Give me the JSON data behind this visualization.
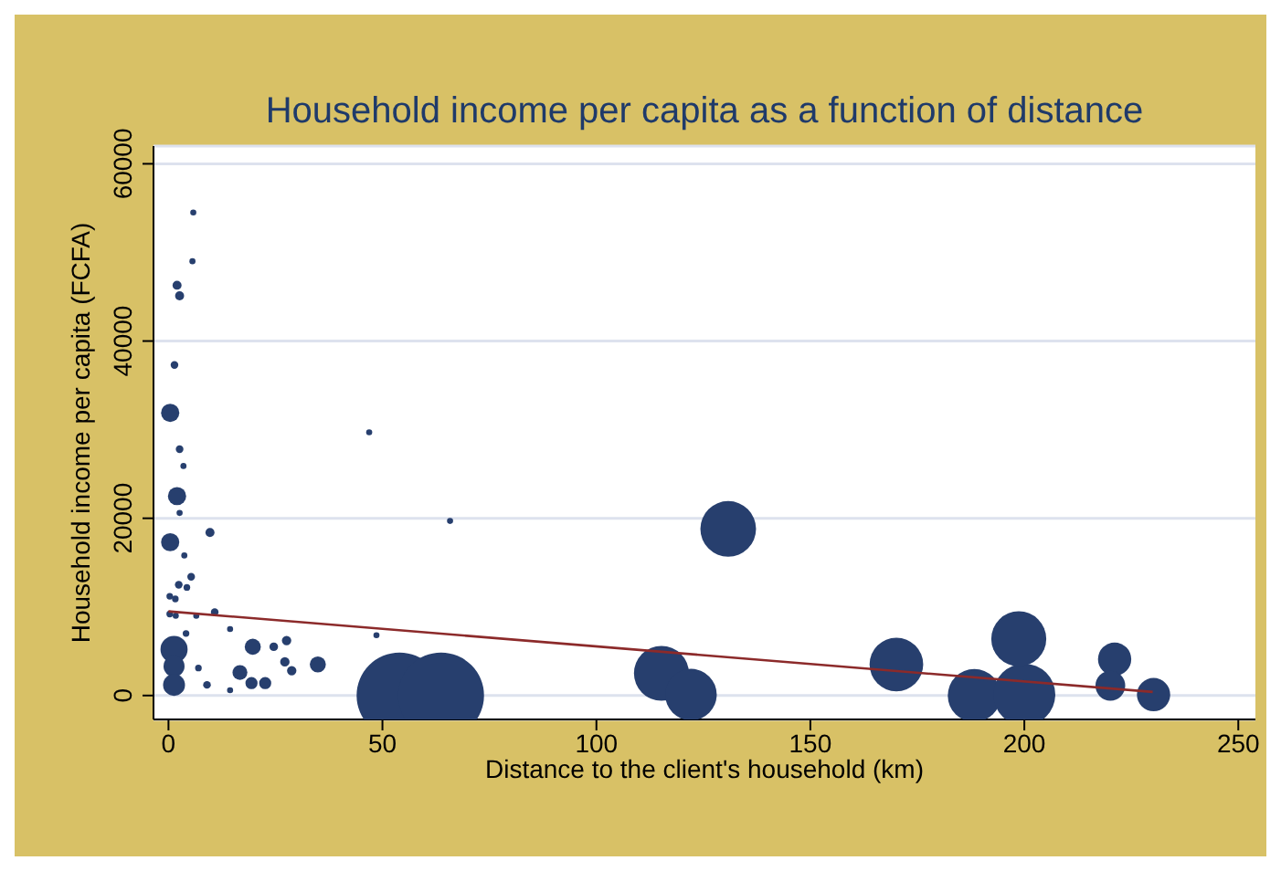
{
  "chart_data": {
    "type": "bubble",
    "title": "Household income per capita as a function of distance",
    "xlabel": "Distance to the client's household (km)",
    "ylabel": "Household income per capita (FCFA)",
    "xlim": [
      -3.5,
      254
    ],
    "xticks": [
      0,
      50,
      100,
      150,
      200,
      250
    ],
    "ylim": [
      -2700,
      62000
    ],
    "yticks": [
      0,
      20000,
      40000,
      60000
    ],
    "grid": "y",
    "series": [
      {
        "color": "#273f6e",
        "x": [
          5.8,
          5.6,
          2.0,
          2.6,
          1.4,
          0.4,
          2.6,
          3.5,
          2.0,
          2.6,
          0.4,
          9.7,
          3.7,
          5.3,
          2.4,
          4.3,
          0.3,
          1.6,
          0.3,
          1.7,
          6.5,
          10.8,
          14.4,
          1.3,
          1.3,
          1.3,
          4.1,
          7.0,
          9.0,
          14.4,
          19.7,
          24.6,
          27.6,
          27.2,
          28.8,
          16.7,
          19.4,
          22.6,
          34.9,
          48.6,
          46.9,
          65.8,
          54.0,
          63.7,
          115.2,
          122.1,
          130.8,
          170.1,
          188.3,
          200.0,
          198.7,
          221.1,
          220.1,
          230.2
        ],
        "values": [
          54500,
          49000,
          46300,
          45100,
          37300,
          31900,
          27800,
          25900,
          22500,
          20600,
          17300,
          18400,
          15800,
          13400,
          12500,
          12200,
          11200,
          10900,
          9200,
          9000,
          9000,
          9400,
          7500,
          5200,
          3300,
          1200,
          7000,
          3100,
          1200,
          600,
          5500,
          5500,
          6200,
          3800,
          2800,
          2600,
          1400,
          1400,
          3500,
          6800,
          29700,
          19700,
          0,
          0,
          2500,
          100,
          18800,
          3500,
          0,
          100,
          6400,
          4100,
          1100,
          100
        ],
        "sizes": [
          0.005,
          0.005,
          0.011,
          0.011,
          0.008,
          0.045,
          0.008,
          0.005,
          0.045,
          0.005,
          0.045,
          0.011,
          0.005,
          0.008,
          0.008,
          0.006,
          0.006,
          0.006,
          0.006,
          0.005,
          0.005,
          0.008,
          0.005,
          0.1,
          0.06,
          0.065,
          0.006,
          0.006,
          0.008,
          0.005,
          0.035,
          0.01,
          0.012,
          0.012,
          0.012,
          0.03,
          0.02,
          0.02,
          0.035,
          0.005,
          0.005,
          0.005,
          1,
          1,
          0.41,
          0.36,
          0.42,
          0.39,
          0.38,
          0.52,
          0.41,
          0.15,
          0.12,
          0.15
        ]
      },
      {
        "type": "line",
        "color": "#8c2a2a",
        "x": [
          0,
          230
        ],
        "values": [
          9500,
          400
        ]
      }
    ]
  }
}
